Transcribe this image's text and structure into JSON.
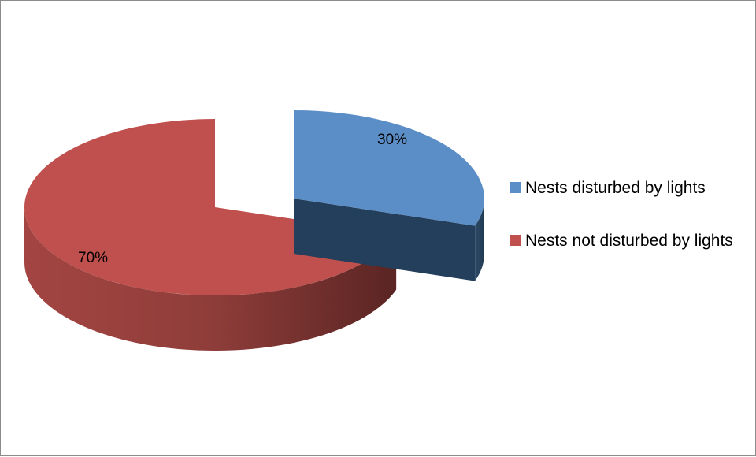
{
  "chart_data": {
    "type": "pie",
    "style": "3d-exploded",
    "slices": [
      {
        "label": "Nests disturbed by lights",
        "value": 30,
        "data_label": "30%",
        "color": "#5b8ec7"
      },
      {
        "label": "Nests not disturbed by lights",
        "value": 70,
        "data_label": "70%",
        "color": "#c0504d"
      }
    ],
    "legend_position": "right"
  }
}
